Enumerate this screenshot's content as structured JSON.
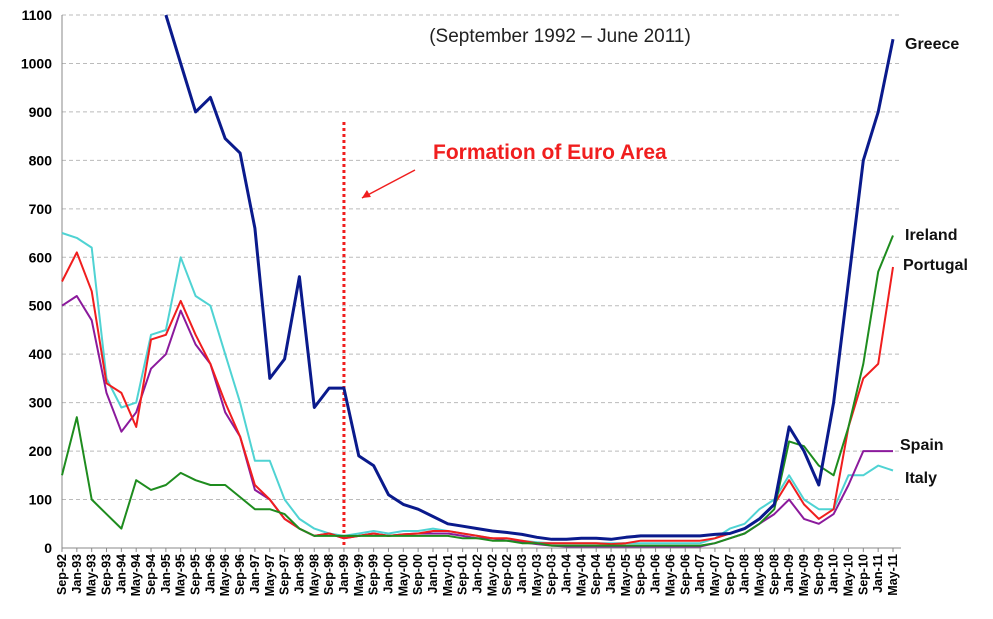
{
  "chart_data": {
    "type": "line",
    "subtitle": "(September 1992 – June 2011)",
    "annotations": [
      {
        "text": "Formation of Euro Area",
        "x": "Jan-99"
      }
    ],
    "categories": [
      "Sep-92",
      "Jan-93",
      "May-93",
      "Sep-93",
      "Jan-94",
      "May-94",
      "Sep-94",
      "Jan-95",
      "May-95",
      "Sep-95",
      "Jan-96",
      "May-96",
      "Sep-96",
      "Jan-97",
      "May-97",
      "Sep-97",
      "Jan-98",
      "May-98",
      "Sep-98",
      "Jan-99",
      "May-99",
      "Sep-99",
      "Jan-00",
      "May-00",
      "Sep-00",
      "Jan-01",
      "May-01",
      "Sep-01",
      "Jan-02",
      "May-02",
      "Sep-02",
      "Jan-03",
      "May-03",
      "Sep-03",
      "Jan-04",
      "May-04",
      "Sep-04",
      "Jan-05",
      "May-05",
      "Sep-05",
      "Jan-06",
      "May-06",
      "Sep-06",
      "Jan-07",
      "May-07",
      "Sep-07",
      "Jan-08",
      "May-08",
      "Sep-08",
      "Jan-09",
      "May-09",
      "Sep-09",
      "Jan-10",
      "May-10",
      "Sep-10",
      "Jan-11",
      "May-11"
    ],
    "series": [
      {
        "name": "Italy",
        "color": "#4fd3d3",
        "values": [
          650,
          640,
          620,
          350,
          290,
          300,
          440,
          450,
          600,
          520,
          500,
          400,
          300,
          180,
          180,
          100,
          60,
          40,
          30,
          25,
          30,
          35,
          30,
          35,
          35,
          40,
          35,
          30,
          25,
          20,
          15,
          15,
          12,
          10,
          10,
          10,
          10,
          10,
          10,
          10,
          10,
          10,
          10,
          10,
          20,
          40,
          50,
          80,
          100,
          150,
          100,
          80,
          80,
          150,
          150,
          170,
          160
        ]
      },
      {
        "name": "Spain",
        "color": "#8b1a9c",
        "values": [
          500,
          520,
          470,
          320,
          240,
          280,
          370,
          400,
          490,
          420,
          380,
          280,
          230,
          120,
          100,
          60,
          40,
          25,
          30,
          20,
          25,
          30,
          25,
          28,
          30,
          30,
          30,
          25,
          20,
          20,
          15,
          12,
          8,
          5,
          3,
          3,
          3,
          3,
          3,
          3,
          3,
          3,
          3,
          3,
          10,
          20,
          30,
          50,
          70,
          100,
          60,
          50,
          70,
          130,
          200,
          200,
          200
        ]
      },
      {
        "name": "Portugal",
        "color": "#f01e1e",
        "values": [
          550,
          610,
          530,
          340,
          320,
          250,
          430,
          440,
          510,
          440,
          380,
          300,
          230,
          130,
          100,
          60,
          40,
          25,
          30,
          20,
          25,
          30,
          25,
          28,
          30,
          35,
          35,
          30,
          25,
          20,
          20,
          15,
          10,
          10,
          10,
          10,
          10,
          8,
          10,
          15,
          15,
          15,
          15,
          15,
          20,
          30,
          40,
          60,
          90,
          140,
          90,
          60,
          80,
          250,
          350,
          380,
          580
        ]
      },
      {
        "name": "Ireland",
        "color": "#1e8c1e",
        "values": [
          150,
          270,
          100,
          70,
          40,
          140,
          120,
          130,
          155,
          140,
          130,
          130,
          105,
          80,
          80,
          70,
          40,
          25,
          25,
          25,
          25,
          25,
          25,
          25,
          25,
          25,
          25,
          20,
          20,
          15,
          15,
          10,
          10,
          5,
          5,
          5,
          5,
          5,
          5,
          5,
          5,
          5,
          5,
          5,
          10,
          20,
          30,
          50,
          80,
          220,
          210,
          170,
          150,
          250,
          380,
          570,
          645
        ]
      },
      {
        "name": "Greece",
        "color": "#0a1a8c",
        "values": [
          null,
          null,
          null,
          null,
          null,
          null,
          null,
          1100,
          1000,
          900,
          930,
          845,
          815,
          660,
          350,
          390,
          560,
          290,
          330,
          330,
          190,
          170,
          110,
          90,
          80,
          65,
          50,
          45,
          40,
          35,
          32,
          28,
          22,
          18,
          18,
          20,
          20,
          18,
          22,
          25,
          25,
          25,
          25,
          25,
          28,
          30,
          40,
          60,
          90,
          250,
          200,
          130,
          300,
          550,
          800,
          900,
          1050
        ]
      }
    ],
    "ylim": [
      0,
      1100
    ],
    "yticks": [
      0,
      100,
      200,
      300,
      400,
      500,
      600,
      700,
      800,
      900,
      1000,
      1100
    ],
    "grid": true
  }
}
